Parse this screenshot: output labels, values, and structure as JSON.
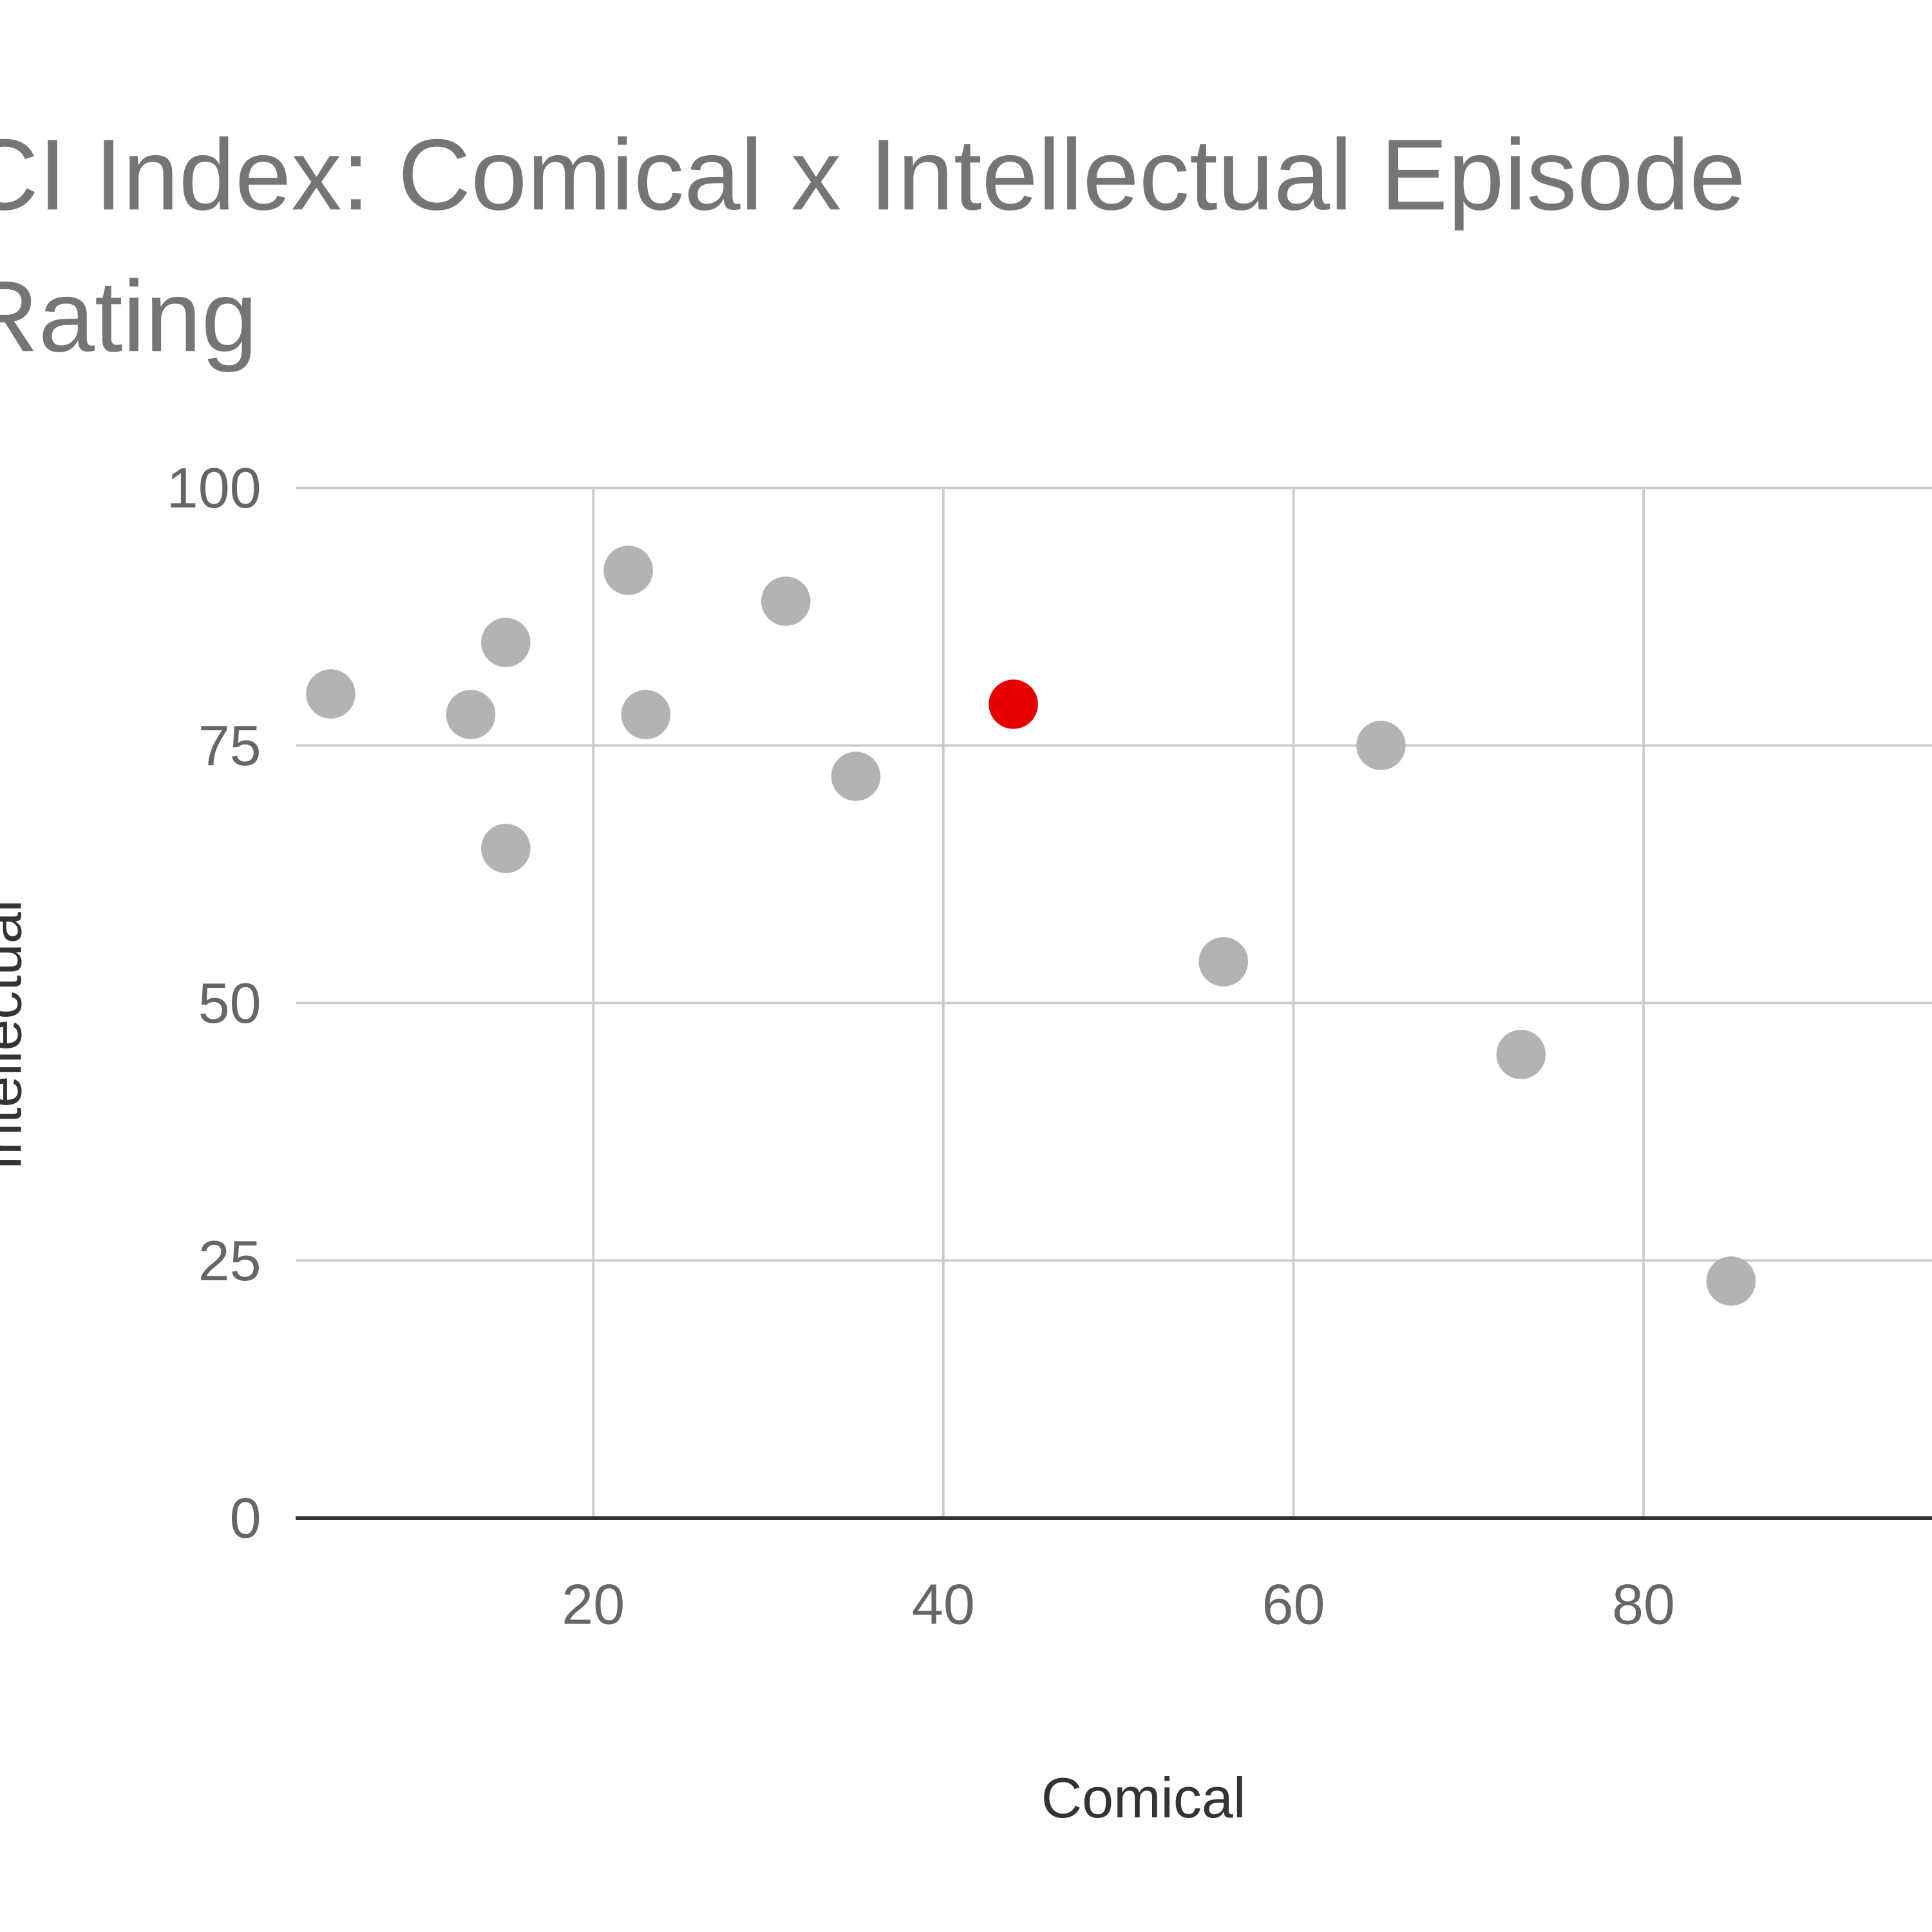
{
  "chart_data": {
    "type": "scatter",
    "title": "CI Index: Comical x Intellectual Episode Rating",
    "x_label": "Comical",
    "y_label": "Intellectual",
    "x": [
      5,
      13,
      15,
      15,
      22,
      23,
      31,
      35,
      44,
      56,
      65,
      73,
      85
    ],
    "y": [
      80,
      78,
      85,
      65,
      92,
      78,
      89,
      72,
      79,
      54,
      75,
      45,
      23
    ],
    "colors": [
      "#b3b3b3",
      "#b3b3b3",
      "#b3b3b3",
      "#b3b3b3",
      "#b3b3b3",
      "#b3b3b3",
      "#b3b3b3",
      "#b3b3b3",
      "#e60000",
      "#b3b3b3",
      "#b3b3b3",
      "#b3b3b3",
      "#b3b3b3"
    ],
    "xlim": [
      3,
      100
    ],
    "ylim": [
      0,
      100
    ],
    "xticks": [
      20,
      40,
      60,
      80
    ],
    "yticks": [
      0,
      25,
      50,
      75,
      100
    ],
    "grid": true
  }
}
